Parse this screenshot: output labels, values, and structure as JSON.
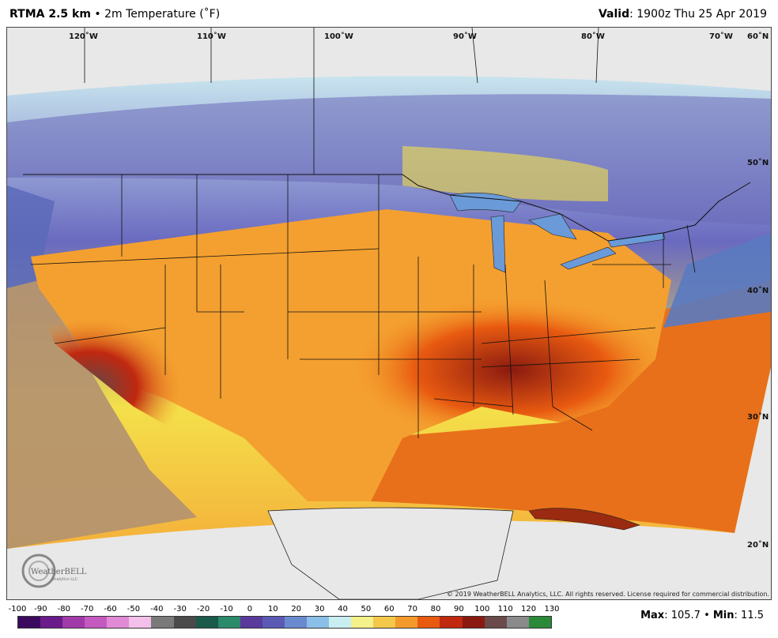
{
  "header": {
    "product": "RTMA 2.5 km",
    "separator": "•",
    "variable": "2m Temperature (˚F)",
    "valid_label": "Valid",
    "valid_time": ": 1900z Thu 25 Apr 2019"
  },
  "map": {
    "longitude_labels": [
      "120˚W",
      "110˚W",
      "100˚W",
      "90˚W",
      "80˚W",
      "70˚W"
    ],
    "latitude_labels": [
      "60˚N",
      "50˚N",
      "40˚N",
      "30˚N",
      "20˚N"
    ],
    "copyright": "© 2019 WeatherBELL Analytics, LLC. All rights reserved. License required for commercial distribution.",
    "logo_text": "WeatherBELL",
    "logo_subtext": "Analytics LLC"
  },
  "colorbar": {
    "ticks": [
      "-100",
      "-90",
      "-80",
      "-70",
      "-60",
      "-50",
      "-40",
      "-30",
      "-20",
      "-10",
      "0",
      "10",
      "20",
      "30",
      "40",
      "50",
      "60",
      "70",
      "80",
      "90",
      "100",
      "110",
      "120",
      "130"
    ],
    "colors": [
      "#3a0a5e",
      "#6a1a8a",
      "#a03aa8",
      "#c45ac0",
      "#e08ad6",
      "#f2c0ea",
      "#7a7a7a",
      "#4a4a4a",
      "#1a5a4a",
      "#2a8a6a",
      "#5a3a9a",
      "#5a5ab4",
      "#6a8ad0",
      "#8ac0e8",
      "#c8eef2",
      "#f4f08a",
      "#f4c84a",
      "#f49a2a",
      "#e85a10",
      "#c02810",
      "#8a1a10",
      "#6a4a4a",
      "#8a8a8a",
      "#2a8a3a"
    ]
  },
  "stats": {
    "max_label": "Max",
    "max_value": ": 105.7",
    "bullet": "•",
    "min_label": "Min",
    "min_value": ": 11.5"
  }
}
